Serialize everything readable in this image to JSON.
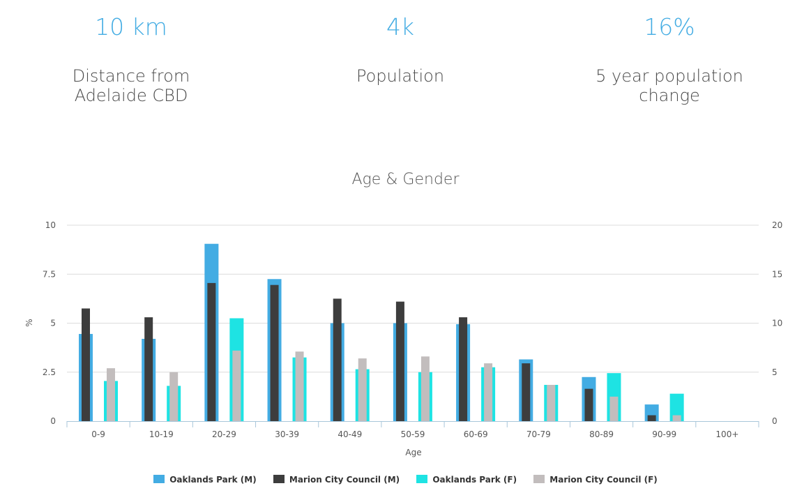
{
  "stats": [
    {
      "value": "10 km",
      "label": "Distance from Adelaide CBD"
    },
    {
      "value": "4k",
      "label": "Population"
    },
    {
      "value": "16%",
      "label": "5 year population change"
    }
  ],
  "colors": {
    "accent": "#43ace3",
    "oaklands_m": "#43ace3",
    "marion_m": "#3d3d3d",
    "oaklands_f": "#1ee3e3",
    "marion_f": "#c2bdbd",
    "grid": "#dcdcdc",
    "axis": "#a8c6da"
  },
  "chart_data": {
    "type": "bar",
    "title": "Age & Gender",
    "xlabel": "Age",
    "ylabel": "%",
    "ylim": [
      0,
      10
    ],
    "y2lim": [
      0,
      20
    ],
    "yticks": [
      "0",
      "2.5",
      "5",
      "7.5",
      "10"
    ],
    "y2ticks": [
      "0",
      "5",
      "10",
      "15",
      "20"
    ],
    "categories": [
      "0-9",
      "10-19",
      "20-29",
      "30-39",
      "40-49",
      "50-59",
      "60-69",
      "70-79",
      "80-89",
      "90-99",
      "100+"
    ],
    "series": [
      {
        "name": "Oaklands Park (M)",
        "values": [
          4.45,
          4.2,
          9.05,
          7.25,
          5.0,
          5.0,
          4.95,
          3.15,
          2.25,
          0.85,
          0
        ]
      },
      {
        "name": "Marion City Council (M)",
        "values": [
          5.75,
          5.3,
          7.05,
          6.95,
          6.25,
          6.1,
          5.3,
          2.95,
          1.65,
          0.3,
          0
        ]
      },
      {
        "name": "Oaklands Park (F)",
        "values": [
          2.05,
          1.8,
          5.25,
          3.25,
          2.65,
          2.5,
          2.75,
          1.85,
          2.45,
          1.4,
          0
        ]
      },
      {
        "name": "Marion City Council (F)",
        "values": [
          2.7,
          2.5,
          3.6,
          3.55,
          3.2,
          3.3,
          2.95,
          1.85,
          1.25,
          0.3,
          0
        ]
      }
    ]
  }
}
